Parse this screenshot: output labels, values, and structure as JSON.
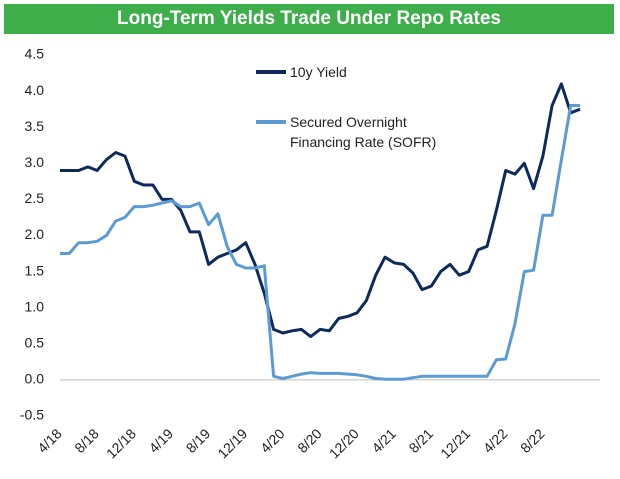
{
  "chart_data": {
    "type": "line",
    "title": "Long-Term Yields Trade Under Repo Rates",
    "x": [
      "4/18",
      "5/18",
      "6/18",
      "7/18",
      "8/18",
      "9/18",
      "10/18",
      "11/18",
      "12/18",
      "1/19",
      "2/19",
      "3/19",
      "4/19",
      "5/19",
      "6/19",
      "7/19",
      "8/19",
      "9/19",
      "10/19",
      "11/19",
      "12/19",
      "1/20",
      "2/20",
      "3/20",
      "4/20",
      "5/20",
      "6/20",
      "7/20",
      "8/20",
      "9/20",
      "10/20",
      "11/20",
      "12/20",
      "1/21",
      "2/21",
      "3/21",
      "4/21",
      "5/21",
      "6/21",
      "7/21",
      "8/21",
      "9/21",
      "10/21",
      "11/21",
      "12/21",
      "1/22",
      "2/22",
      "3/22",
      "4/22",
      "5/22",
      "6/22",
      "7/22",
      "8/22",
      "9/22",
      "10/22",
      "11/22",
      "12/22"
    ],
    "xticks": [
      "4/18",
      "8/18",
      "12/18",
      "4/19",
      "8/19",
      "12/19",
      "4/20",
      "8/20",
      "12/20",
      "4/21",
      "8/21",
      "12/21",
      "4/22",
      "8/22"
    ],
    "series": [
      {
        "name": "10y Yield",
        "color": "#0e2a5c",
        "values": [
          2.9,
          2.9,
          2.9,
          2.95,
          2.9,
          3.05,
          3.15,
          3.1,
          2.75,
          2.7,
          2.7,
          2.5,
          2.5,
          2.35,
          2.05,
          2.05,
          1.6,
          1.7,
          1.75,
          1.8,
          1.9,
          1.6,
          1.2,
          0.7,
          0.65,
          0.68,
          0.7,
          0.6,
          0.7,
          0.68,
          0.85,
          0.88,
          0.93,
          1.1,
          1.45,
          1.7,
          1.62,
          1.6,
          1.48,
          1.25,
          1.3,
          1.5,
          1.6,
          1.45,
          1.5,
          1.8,
          1.85,
          2.35,
          2.9,
          2.85,
          3.0,
          2.65,
          3.1,
          3.8,
          4.1,
          3.7,
          3.75
        ]
      },
      {
        "name": "Secured Overnight Financing Rate (SOFR)",
        "color": "#5b9bd5",
        "values": [
          1.75,
          1.75,
          1.9,
          1.9,
          1.92,
          2.0,
          2.2,
          2.25,
          2.4,
          2.4,
          2.42,
          2.45,
          2.48,
          2.4,
          2.4,
          2.45,
          2.15,
          2.3,
          1.85,
          1.6,
          1.55,
          1.55,
          1.58,
          0.05,
          0.02,
          0.05,
          0.08,
          0.1,
          0.09,
          0.09,
          0.09,
          0.08,
          0.07,
          0.05,
          0.02,
          0.01,
          0.01,
          0.01,
          0.03,
          0.05,
          0.05,
          0.05,
          0.05,
          0.05,
          0.05,
          0.05,
          0.05,
          0.28,
          0.29,
          0.78,
          1.5,
          1.52,
          2.28,
          2.28,
          3.05,
          3.8,
          3.8
        ]
      }
    ],
    "ylim": [
      -0.5,
      4.5
    ],
    "yticks": [
      4.5,
      {
        "value": 4,
        "label": "4.0"
      },
      3.5,
      {
        "value": 3,
        "label": "3.0"
      },
      2.5,
      {
        "value": 2,
        "label": "2.0"
      },
      1.5,
      {
        "value": 1,
        "label": "1.0"
      },
      0.5,
      {
        "value": 0,
        "label": "0.0"
      },
      -0.5
    ]
  }
}
